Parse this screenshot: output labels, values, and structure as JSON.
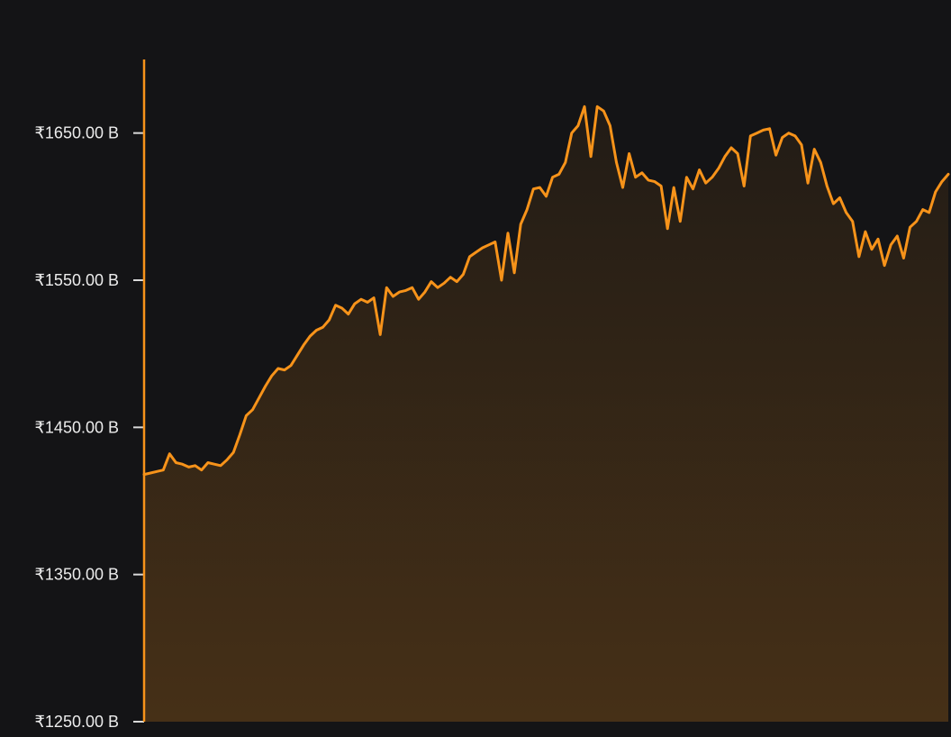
{
  "chart_data": {
    "type": "area",
    "title": "",
    "xlabel": "",
    "ylabel": "",
    "ylim": [
      1250,
      1700
    ],
    "y_ticks": [
      {
        "value": 1650,
        "label": "₹1650.00 B"
      },
      {
        "value": 1550,
        "label": "₹1550.00 B"
      },
      {
        "value": 1450,
        "label": "₹1450.00 B"
      },
      {
        "value": 1350,
        "label": "₹1350.00 B"
      },
      {
        "value": 1250,
        "label": "₹1250.00 B"
      }
    ],
    "grid": false,
    "legend": "none",
    "series": [
      {
        "color": "#f7931a",
        "values": [
          1418,
          1419,
          1420,
          1421,
          1432,
          1426,
          1425,
          1423,
          1424,
          1421,
          1426,
          1425,
          1424,
          1428,
          1433,
          1445,
          1458,
          1462,
          1470,
          1478,
          1485,
          1490,
          1489,
          1492,
          1499,
          1506,
          1512,
          1516,
          1518,
          1523,
          1533,
          1531,
          1527,
          1534,
          1537,
          1535,
          1538,
          1513,
          1545,
          1539,
          1542,
          1543,
          1545,
          1537,
          1542,
          1549,
          1545,
          1548,
          1552,
          1549,
          1554,
          1566,
          1569,
          1572,
          1574,
          1576,
          1550,
          1582,
          1555,
          1588,
          1598,
          1612,
          1613,
          1607,
          1620,
          1622,
          1630,
          1650,
          1655,
          1668,
          1634,
          1668,
          1665,
          1655,
          1630,
          1613,
          1636,
          1620,
          1623,
          1618,
          1617,
          1614,
          1585,
          1613,
          1590,
          1620,
          1612,
          1625,
          1616,
          1620,
          1626,
          1634,
          1640,
          1636,
          1614,
          1648,
          1650,
          1652,
          1653,
          1635,
          1647,
          1650,
          1648,
          1642,
          1616,
          1639,
          1630,
          1614,
          1602,
          1606,
          1596,
          1590,
          1566,
          1583,
          1571,
          1578,
          1560,
          1574,
          1580,
          1565,
          1586,
          1590,
          1598,
          1596,
          1610,
          1617,
          1622
        ]
      }
    ]
  }
}
